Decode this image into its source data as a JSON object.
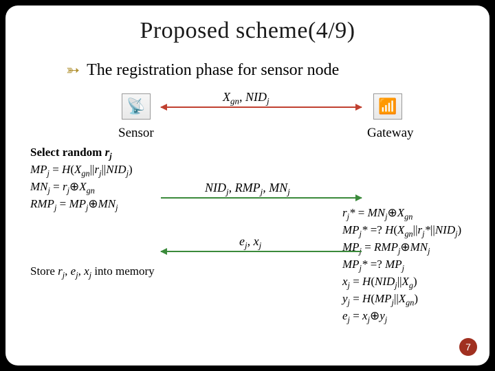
{
  "title": "Proposed scheme(4/9)",
  "title_fontsize": 34,
  "title_color": "#1a1a1a",
  "bullet": {
    "swirl_color": "#b09030",
    "text": "The registration phase for sensor node",
    "fontsize": 24
  },
  "labels": {
    "sensor": "Sensor",
    "gateway": "Gateway"
  },
  "icons": {
    "sensor_glyph": "📡",
    "gateway_glyph": "📶"
  },
  "arrows": {
    "a1": {
      "color": "#c04030",
      "double": true
    },
    "a2": {
      "color": "#3a8a3a",
      "double": false,
      "dir": "right"
    },
    "a3": {
      "color": "#3a8a3a",
      "double": false,
      "dir": "left"
    }
  },
  "messages": {
    "m1_html": "X<sub>gn</sub>, NID<sub>j</sub>",
    "m2_html": "NID<sub>j</sub>, RMP<sub>j</sub>, MN<sub>j</sub>",
    "m3_html": "e<sub>j</sub>, x<sub>j</sub>"
  },
  "calc_left_html": "<b>Select random <span class='it'>r<sub>j</sub></span></b><br><span class='it'>MP<sub>j</sub></span> = <span class='it'>H</span>(<span class='it'>X<sub>gn</sub></span>||<span class='it'>r<sub>j</sub></span>||<span class='it'>NID<sub>j</sub></span>)<br><span class='it'>MN<sub>j</sub></span> = <span class='it'>r<sub>j</sub></span>⊕<span class='it'>X<sub>gn</sub></span><br><span class='it'>RMP<sub>j</sub></span> = <span class='it'>MP<sub>j</sub></span>⊕<span class='it'>MN<sub>j</sub></span>",
  "calc_right_html": "<span class='it'>r<sub>j</sub>*</span> = <span class='it'>MN<sub>j</sub></span>⊕<span class='it'>X<sub>gn</sub></span><br><span class='it'>MP<sub>j</sub>*</span> =? <span class='it'>H</span>(<span class='it'>X<sub>gn</sub></span>||<span class='it'>r<sub>j</sub>*</span>||<span class='it'>NID<sub>j</sub></span>)<br><span class='it'>MP<sub>j</sub></span> = <span class='it'>RMP<sub>j</sub></span>⊕<span class='it'>MN<sub>j</sub></span><br><span class='it'>MP<sub>j</sub>*</span> =? <span class='it'>MP<sub>j</sub></span><br><span class='it'>x<sub>j</sub></span> = <span class='it'>H</span>(<span class='it'>NID<sub>j</sub></span>||<span class='it'>X<sub>g</sub></span>)<br><span class='it'>y<sub>j</sub></span> = <span class='it'>H</span>(<span class='it'>MP<sub>j</sub></span>||<span class='it'>X<sub>gn</sub></span>)<br><span class='it'>e<sub>j</sub></span> = <span class='it'>x<sub>j</sub></span>⊕<span class='it'>y<sub>j</sub></span>",
  "store_html": "Store <span class='it'>r<sub>j</sub></span>, <span class='it'>e<sub>j</sub></span>, <span class='it'>x<sub>j</sub></span> into memory",
  "pagenum": {
    "value": "7",
    "bg": "#a03020"
  },
  "background": "#ffffff"
}
